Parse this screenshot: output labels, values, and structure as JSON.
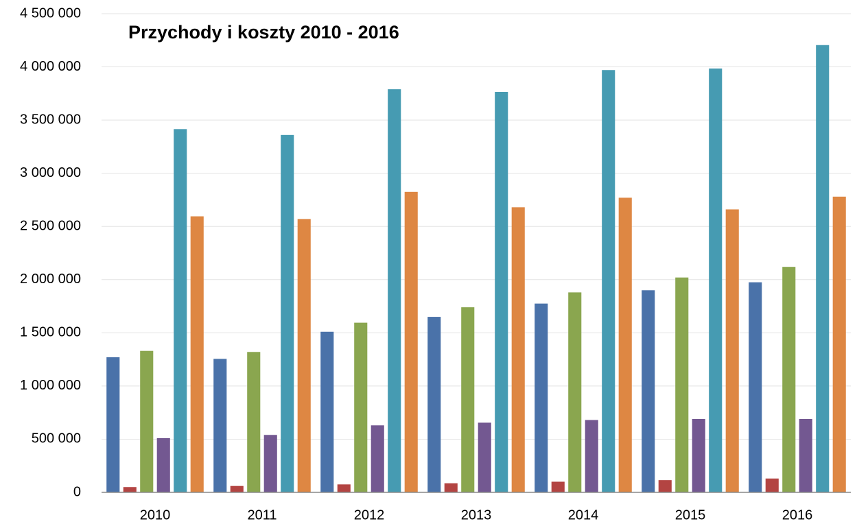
{
  "chart_data": {
    "type": "bar",
    "title": "Przychody i koszty 2010 - 2016",
    "categories": [
      "2010",
      "2011",
      "2012",
      "2013",
      "2014",
      "2015",
      "2016"
    ],
    "series": [
      {
        "color": "#4a72a9",
        "values": [
          1270000,
          1255000,
          1510000,
          1650000,
          1775000,
          1900000,
          1975000
        ]
      },
      {
        "color": "#b34442",
        "values": [
          50000,
          60000,
          75000,
          85000,
          100000,
          115000,
          130000
        ]
      },
      {
        "color": "#8aa64f",
        "values": [
          1330000,
          1320000,
          1595000,
          1740000,
          1880000,
          2020000,
          2120000
        ]
      },
      {
        "color": "#735891",
        "values": [
          510000,
          540000,
          630000,
          655000,
          680000,
          690000,
          690000
        ]
      },
      {
        "color": "#469bb2",
        "values": [
          3415000,
          3360000,
          3790000,
          3765000,
          3970000,
          3985000,
          4205000
        ]
      },
      {
        "color": "#de8743",
        "values": [
          2595000,
          2570000,
          2825000,
          2680000,
          2770000,
          2660000,
          2780000
        ]
      }
    ],
    "ylim": [
      0,
      4500000
    ],
    "yticks": [
      0,
      {
        "value": 500000,
        "label": "500 000"
      },
      {
        "value": 1000000,
        "label": "1 000 000"
      },
      {
        "value": 1500000,
        "label": "1 500 000"
      },
      {
        "value": 2000000,
        "label": "2 000 000"
      },
      {
        "value": 2500000,
        "label": "2 500 000"
      },
      {
        "value": 3000000,
        "label": "3 000 000"
      },
      {
        "value": 3500000,
        "label": "3 500 000"
      },
      {
        "value": 4000000,
        "label": "4 000 000"
      },
      {
        "value": 4500000,
        "label": "4 500 000"
      }
    ],
    "grid": true
  }
}
